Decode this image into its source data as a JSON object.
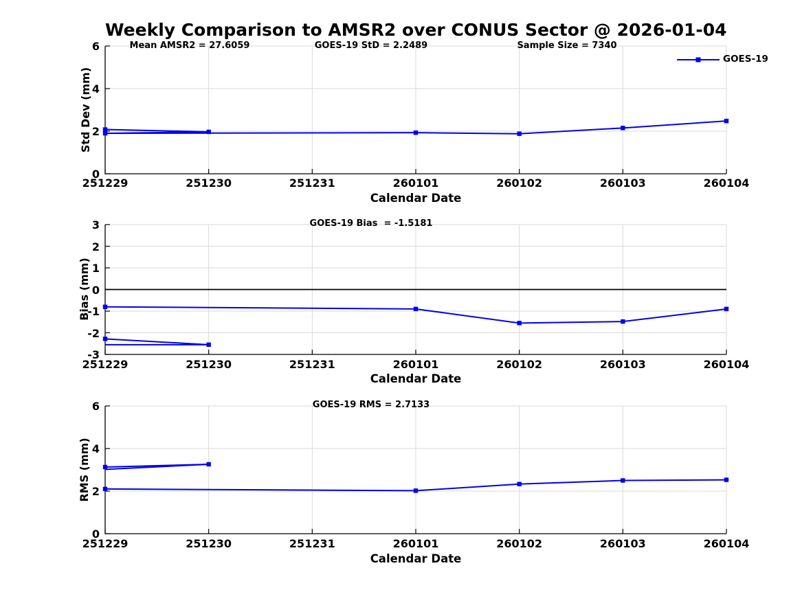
{
  "title": "Weekly Comparison to AMSR2 over CONUS Sector @ 2026-01-04",
  "colors": {
    "series": "#0000EE",
    "zero_line": "#000000",
    "grid": "#D9D9D9",
    "axis": "#000000",
    "text": "#000000",
    "background": "#FFFFFF"
  },
  "legend": {
    "label": "GOES-19"
  },
  "x_axis": {
    "label": "Calendar Date",
    "ticks": [
      "251229",
      "251230",
      "251231",
      "260101",
      "260102",
      "260103",
      "260104"
    ]
  },
  "chart_data": [
    {
      "type": "line",
      "name": "std-dev-panel",
      "ylabel": "Std Dev (mm)",
      "xlabel": "Calendar Date",
      "ylim": [
        0,
        6
      ],
      "yticks": [
        0,
        2,
        4,
        6
      ],
      "x": [
        "251229",
        "251230",
        "251231",
        "260101",
        "260102",
        "260103",
        "260104"
      ],
      "annotations": [
        "Mean AMSR2 = 27.6059",
        "GOES-19 StD = 2.2489",
        "Sample Size = 7340"
      ],
      "lines": [
        {
          "name": "goes19-early-segment",
          "points": [
            [
              "251229",
              2.08
            ],
            [
              "251230",
              1.97
            ],
            [
              "251229",
              1.9
            ]
          ],
          "markers": [
            true,
            true,
            false
          ]
        },
        {
          "name": "goes19-series",
          "points": [
            [
              "251229",
              1.9
            ],
            [
              "260101",
              1.93
            ],
            [
              "260102",
              1.88
            ],
            [
              "260103",
              2.15
            ],
            [
              "260104",
              2.48
            ]
          ],
          "markers": [
            true,
            true,
            true,
            true,
            true
          ]
        }
      ]
    },
    {
      "type": "line",
      "name": "bias-panel",
      "ylabel": "Bias (mm)",
      "xlabel": "Calendar Date",
      "ylim": [
        -3,
        3
      ],
      "yticks": [
        3,
        2,
        1,
        0,
        -1,
        -2,
        -3
      ],
      "x": [
        "251229",
        "251230",
        "251231",
        "260101",
        "260102",
        "260103",
        "260104"
      ],
      "annotations": [
        "GOES-19 Bias  = -1.5181"
      ],
      "lines": [
        {
          "name": "zero-reference-line",
          "color": "#000000",
          "width": 1.8,
          "points": [
            [
              "251229",
              0
            ],
            [
              "260104",
              0
            ]
          ],
          "markers": [
            false,
            false
          ]
        },
        {
          "name": "goes19-early-segment",
          "points": [
            [
              "251229",
              -2.28
            ],
            [
              "251230",
              -2.55
            ],
            [
              "251229",
              -2.55
            ]
          ],
          "markers": [
            true,
            true,
            false
          ]
        },
        {
          "name": "goes19-series",
          "points": [
            [
              "251229",
              -0.8
            ],
            [
              "260101",
              -0.9
            ],
            [
              "260102",
              -1.55
            ],
            [
              "260103",
              -1.48
            ],
            [
              "260104",
              -0.9
            ]
          ],
          "markers": [
            true,
            true,
            true,
            true,
            true
          ]
        }
      ]
    },
    {
      "type": "line",
      "name": "rms-panel",
      "ylabel": "RMS (mm)",
      "xlabel": "Calendar Date",
      "ylim": [
        0,
        6
      ],
      "yticks": [
        0,
        2,
        4,
        6
      ],
      "x": [
        "251229",
        "251230",
        "251231",
        "260101",
        "260102",
        "260103",
        "260104"
      ],
      "annotations": [
        "GOES-19 RMS = 2.7133"
      ],
      "lines": [
        {
          "name": "goes19-early-segment",
          "points": [
            [
              "251229",
              3.13
            ],
            [
              "251230",
              3.26
            ],
            [
              "251229",
              3.02
            ]
          ],
          "markers": [
            true,
            true,
            false
          ]
        },
        {
          "name": "goes19-series",
          "points": [
            [
              "251229",
              2.1
            ],
            [
              "260101",
              2.02
            ],
            [
              "260102",
              2.33
            ],
            [
              "260103",
              2.5
            ],
            [
              "260104",
              2.53
            ]
          ],
          "markers": [
            true,
            true,
            true,
            true,
            true
          ]
        }
      ]
    }
  ]
}
